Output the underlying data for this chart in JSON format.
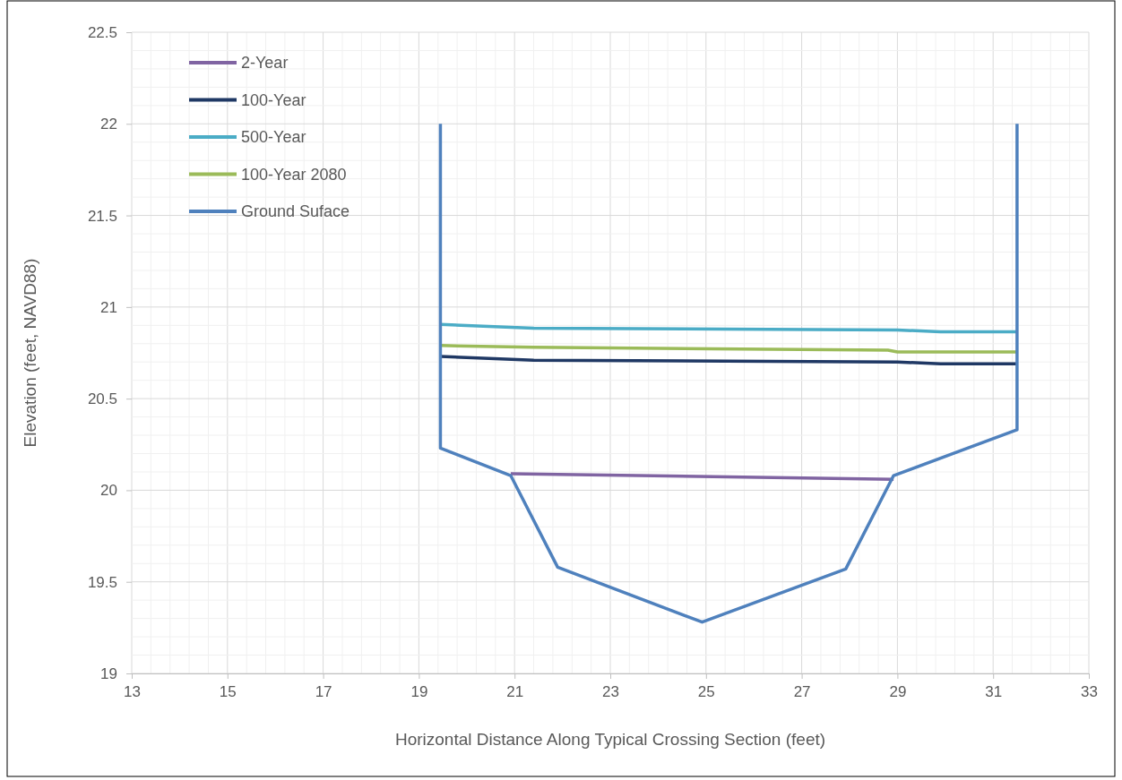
{
  "chart_data": {
    "type": "line",
    "xlabel": "Horizontal Distance Along Typical Crossing Section (feet)",
    "ylabel": "Elevation (feet, NAVD88)",
    "xlim": [
      13,
      33
    ],
    "xticks": [
      13,
      15,
      17,
      19,
      21,
      23,
      25,
      27,
      29,
      31,
      33
    ],
    "ylim": [
      19,
      22.5
    ],
    "yticks": [
      19,
      19.5,
      20,
      20.5,
      21,
      21.5,
      22,
      22.5
    ],
    "grid": true,
    "legend": "top left",
    "marker": "none",
    "line_style": "solid",
    "series": [
      {
        "name": "2-Year",
        "color": "#8064a2",
        "x": [
          20.92,
          28.92
        ],
        "values": [
          20.09,
          20.06
        ]
      },
      {
        "name": "100-Year",
        "color": "#1f3864",
        "x": [
          19.45,
          21.4,
          29.0,
          29.9,
          31.5
        ],
        "values": [
          20.73,
          20.71,
          20.7,
          20.69,
          20.69
        ]
      },
      {
        "name": "500-Year",
        "color": "#4bacc6",
        "x": [
          19.45,
          21.4,
          29.0,
          29.9,
          31.5
        ],
        "values": [
          20.905,
          20.885,
          20.875,
          20.865,
          20.865
        ]
      },
      {
        "name": "100-Year 2080",
        "color": "#9bbb59",
        "x": [
          19.45,
          21.4,
          28.8,
          29.0,
          31.5
        ],
        "values": [
          20.79,
          20.78,
          20.765,
          20.755,
          20.755
        ]
      },
      {
        "name": "Ground Suface",
        "color": "#4f81bd",
        "x": [
          19.45,
          19.45,
          20.92,
          21.9,
          24.92,
          27.92,
          28.92,
          31.5,
          31.5
        ],
        "values": [
          22.0,
          20.23,
          20.08,
          19.58,
          19.28,
          19.57,
          20.08,
          20.33,
          22.0
        ]
      }
    ]
  }
}
